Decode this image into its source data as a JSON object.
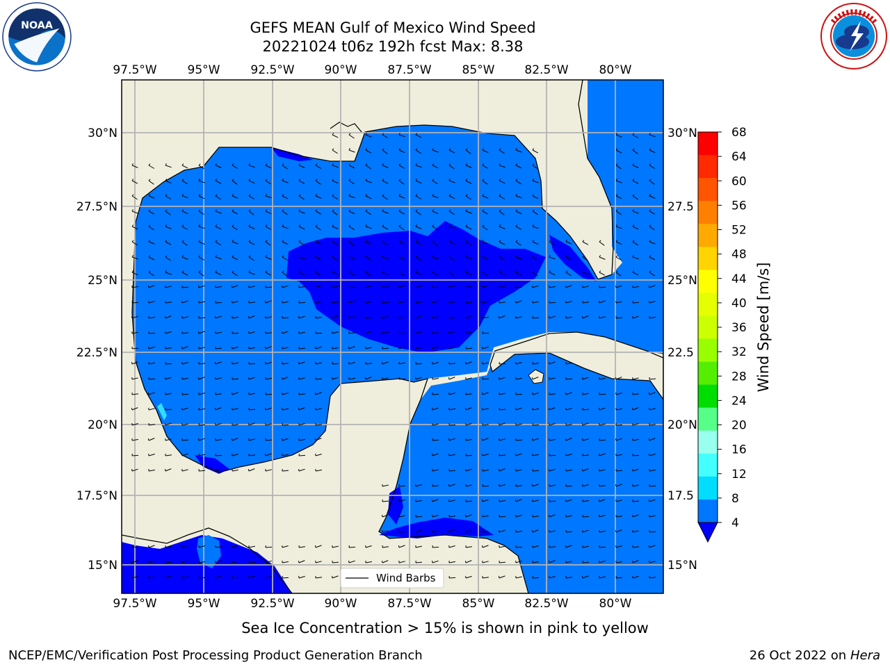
{
  "title": {
    "line1": "GEFS MEAN Gulf of Mexico Wind Speed",
    "line2": "20221024 t06z 192h fcst   Max: 8.38"
  },
  "axes": {
    "lon_labels": [
      "97.5°W",
      "95°W",
      "92.5°W",
      "90°W",
      "87.5°W",
      "85°W",
      "82.5°W",
      "80°W"
    ],
    "lat_labels": [
      "30°N",
      "27.5°N",
      "25°N",
      "22.5°N",
      "20°N",
      "17.5°N",
      "15°N"
    ],
    "lat_labels_right": [
      "30°N",
      "27.5",
      "25°N",
      "22.5",
      "20°N",
      "17.5",
      "15°N"
    ]
  },
  "legend": {
    "label": "Wind Barbs"
  },
  "colorbar": {
    "label": "Wind Speed [m/s]",
    "ticks": [
      "68",
      "64",
      "60",
      "56",
      "52",
      "48",
      "44",
      "40",
      "36",
      "32",
      "28",
      "24",
      "20",
      "16",
      "12",
      "8",
      "4"
    ],
    "colors": [
      "#ff0000",
      "#ff2a00",
      "#ff5500",
      "#ff8000",
      "#ffaa00",
      "#ffd400",
      "#ffff00",
      "#e6ff00",
      "#ccff00",
      "#99ff00",
      "#55ee00",
      "#00dd00",
      "#55ff88",
      "#99ffee",
      "#44ffff",
      "#00ddff",
      "#0077ff"
    ],
    "under_color": "#0000ff"
  },
  "colors": {
    "land": "#efeedd",
    "ocean_low": "#0000ff",
    "ocean_mid": "#0077ff",
    "ocean_high": "#33ddff"
  },
  "footer": {
    "seaice": "Sea Ice Concentration > 15% is shown in pink to yellow",
    "credit": "NCEP/EMC/Verification Post Processing Product Generation Branch",
    "date": "26 Oct 2022 on",
    "machine": "Hera"
  },
  "logos": {
    "noaa": "noaa-logo",
    "nws": "nws-logo"
  }
}
